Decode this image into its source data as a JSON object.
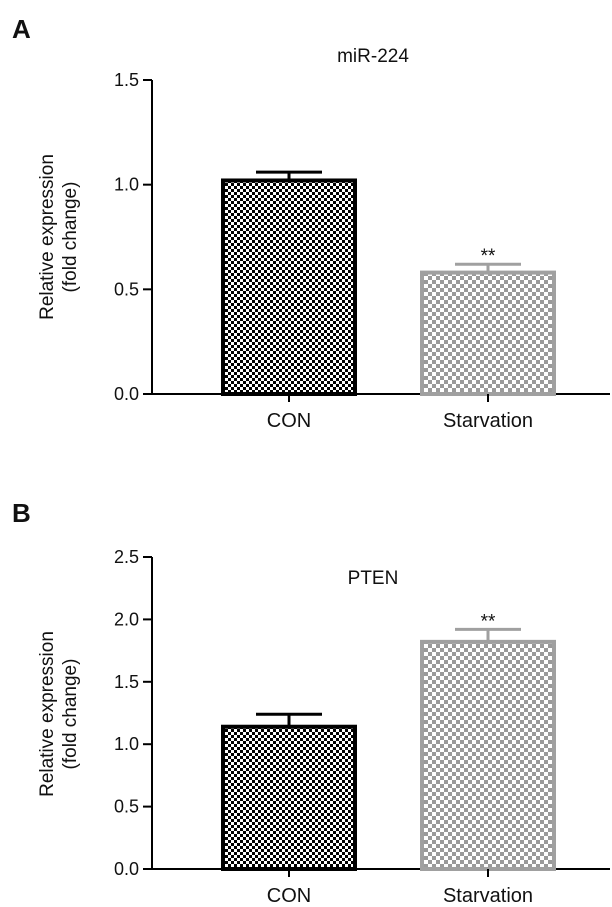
{
  "chart_data": [
    {
      "type": "bar",
      "panel_label": "A",
      "title": "miR-224",
      "ylabel_line1": "Relative expression",
      "ylabel_line2": "(fold change)",
      "xlabel": "",
      "ylim": [
        0,
        1.5
      ],
      "yticks": [
        "0.0",
        "0.5",
        "1.0",
        "1.5"
      ],
      "categories": [
        "CON",
        "Starvation"
      ],
      "values": [
        1.02,
        0.58
      ],
      "errors": [
        0.04,
        0.04
      ],
      "annotations": [
        "",
        "**"
      ],
      "bar_border_colors": [
        "#000000",
        "#a0a0a0"
      ],
      "bar_fill_colors": [
        "#000000",
        "#9a9a9a"
      ],
      "grid": false
    },
    {
      "type": "bar",
      "panel_label": "B",
      "title": "PTEN",
      "ylabel_line1": "Relative expression",
      "ylabel_line2": "(fold change)",
      "xlabel": "",
      "ylim": [
        0,
        2.5
      ],
      "yticks": [
        "0.0",
        "0.5",
        "1.0",
        "1.5",
        "2.0",
        "2.5"
      ],
      "categories": [
        "CON",
        "Starvation"
      ],
      "values": [
        1.14,
        1.82
      ],
      "errors": [
        0.1,
        0.1
      ],
      "annotations": [
        "",
        "**"
      ],
      "bar_border_colors": [
        "#000000",
        "#a0a0a0"
      ],
      "bar_fill_colors": [
        "#000000",
        "#9a9a9a"
      ],
      "grid": false
    }
  ]
}
